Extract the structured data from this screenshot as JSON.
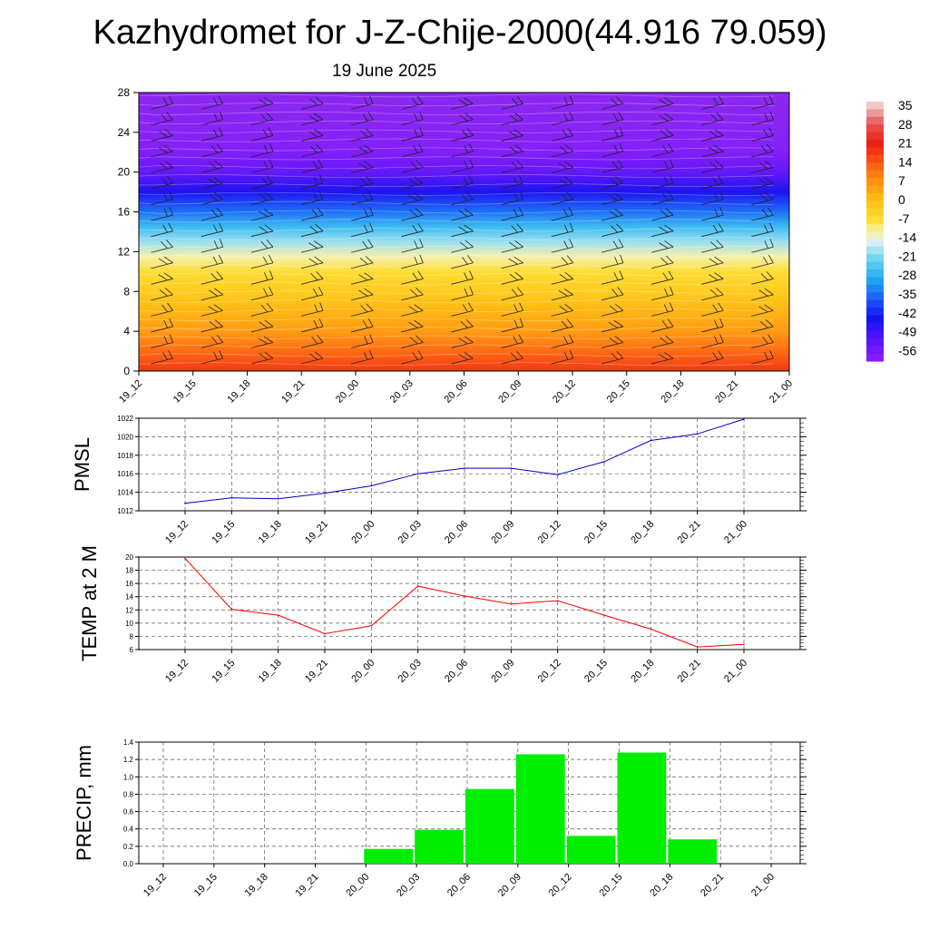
{
  "title": "Kazhydromet for J-Z-Chije-2000(44.916 79.059)",
  "subtitle": "19 June 2025",
  "time_labels": [
    "19_12",
    "19_15",
    "19_18",
    "19_21",
    "20_00",
    "20_03",
    "20_06",
    "20_09",
    "20_12",
    "20_15",
    "20_18",
    "20_21",
    "21_00"
  ],
  "colorbar": {
    "labels": [
      "35",
      "28",
      "21",
      "14",
      "7",
      "0",
      "-7",
      "-14",
      "-21",
      "-28",
      "-35",
      "-42",
      "-49",
      "-56"
    ]
  },
  "chart_data": [
    {
      "type": "heatmap",
      "title": "",
      "y_ticks": [
        0,
        4,
        8,
        12,
        16,
        20,
        24,
        28
      ],
      "ylim": [
        0,
        28
      ],
      "x_categories": [
        "19_12",
        "19_15",
        "19_18",
        "19_21",
        "20_00",
        "20_03",
        "20_06",
        "20_09",
        "20_12",
        "20_15",
        "20_18",
        "20_21",
        "21_00"
      ],
      "temperature_profile_by_level": [
        {
          "level": 0,
          "value": 18
        },
        {
          "level": 2,
          "value": 12
        },
        {
          "level": 4,
          "value": 6
        },
        {
          "level": 6,
          "value": 2
        },
        {
          "level": 8,
          "value": -2
        },
        {
          "level": 10,
          "value": -6
        },
        {
          "level": 11.5,
          "value": -11
        },
        {
          "level": 13,
          "value": -18
        },
        {
          "level": 14.5,
          "value": -25
        },
        {
          "level": 16,
          "value": -33
        },
        {
          "level": 18,
          "value": -43
        },
        {
          "level": 20,
          "value": -52
        },
        {
          "level": 22,
          "value": -56
        },
        {
          "level": 24,
          "value": -58
        },
        {
          "level": 28,
          "value": -60
        }
      ],
      "wind_barbs": true
    },
    {
      "type": "line",
      "ylabel": "PMSL",
      "x": [
        "19_12",
        "19_15",
        "19_18",
        "19_21",
        "20_00",
        "20_03",
        "20_06",
        "20_09",
        "20_12",
        "20_15",
        "20_18",
        "20_21",
        "21_00"
      ],
      "y_ticks": [
        1012,
        1014,
        1016,
        1018,
        1020,
        1022
      ],
      "ylim": [
        1012,
        1022
      ],
      "grid": true,
      "series": [
        {
          "values": [
            1012.8,
            1013.4,
            1013.3,
            1013.9,
            1014.7,
            1016.0,
            1016.6,
            1016.6,
            1015.9,
            1017.3,
            1019.6,
            1020.3,
            1021.9
          ],
          "color": "#0000cc"
        }
      ]
    },
    {
      "type": "line",
      "ylabel": "TEMP at 2 M",
      "x": [
        "19_12",
        "19_15",
        "19_18",
        "19_21",
        "20_00",
        "20_03",
        "20_06",
        "20_09",
        "20_12",
        "20_15",
        "20_18",
        "20_21",
        "21_00"
      ],
      "y_ticks": [
        6,
        8,
        10,
        12,
        14,
        16,
        18,
        20
      ],
      "ylim": [
        6,
        20
      ],
      "grid": true,
      "series": [
        {
          "values": [
            19.8,
            12.1,
            11.2,
            8.4,
            9.6,
            15.6,
            14.1,
            12.9,
            13.4,
            11.2,
            9.1,
            6.4,
            6.8
          ],
          "color": "#ff0000"
        }
      ]
    },
    {
      "type": "bar",
      "ylabel": "PRECIP, mm",
      "x": [
        "19_12",
        "19_15",
        "19_18",
        "19_21",
        "20_00",
        "20_03",
        "20_06",
        "20_09",
        "20_12",
        "20_15",
        "20_18",
        "20_21",
        "21_00"
      ],
      "y_ticks": [
        "0.0",
        "0.2",
        "0.4",
        "0.6",
        "0.8",
        "1.0",
        "1.2",
        "1.4"
      ],
      "ylim": [
        0,
        1.4
      ],
      "grid": true,
      "bars": [
        {
          "from": "20_00",
          "to": "20_03",
          "value": 0.17
        },
        {
          "from": "20_03",
          "to": "20_06",
          "value": 0.39
        },
        {
          "from": "20_06",
          "to": "20_09",
          "value": 0.86
        },
        {
          "from": "20_09",
          "to": "20_12",
          "value": 1.26
        },
        {
          "from": "20_12",
          "to": "20_15",
          "value": 0.32
        },
        {
          "from": "20_15",
          "to": "20_18",
          "value": 1.28
        },
        {
          "from": "20_18",
          "to": "20_21",
          "value": 0.28
        }
      ],
      "color": "#00ee00"
    }
  ]
}
